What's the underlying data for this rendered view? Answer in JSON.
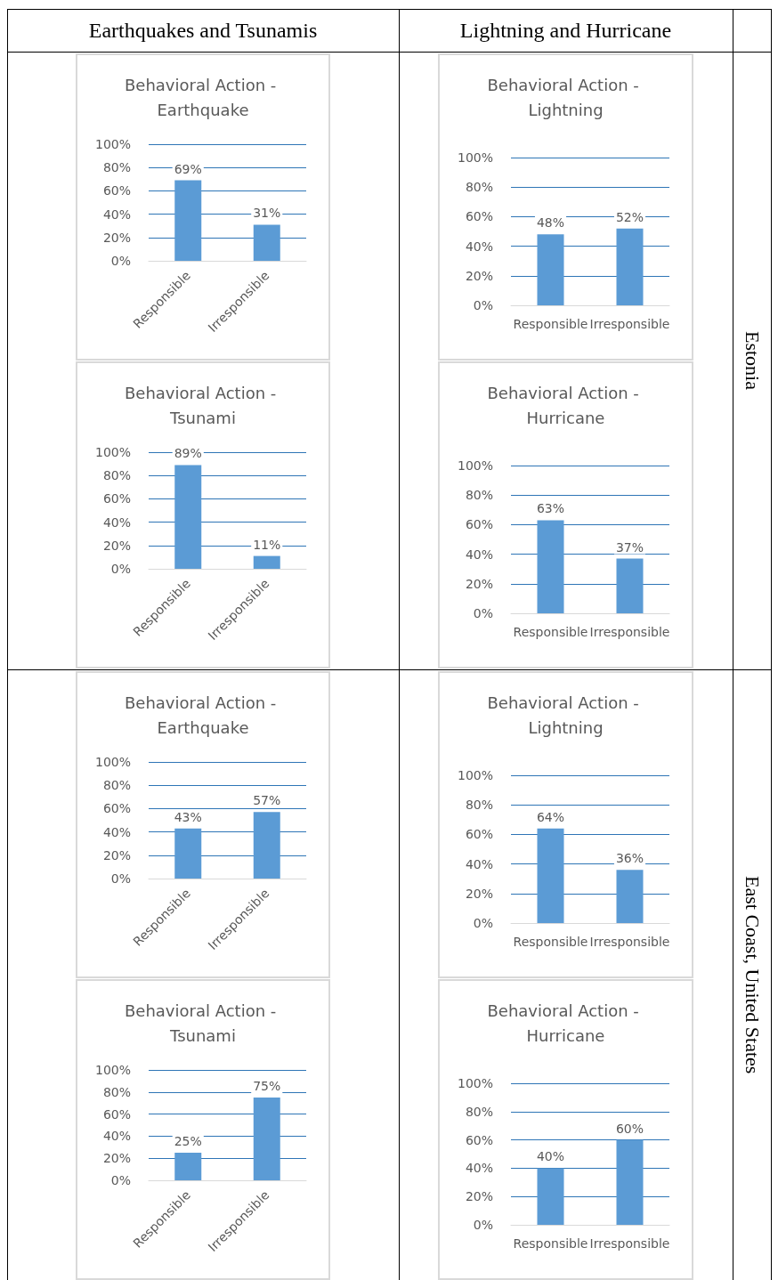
{
  "chart_data": [
    {
      "type": "other",
      "annotations": [
        "Earthquakes and Tsunamis",
        "Lightning and Hurricane",
        "Estonia",
        "East Coast, United States"
      ]
    },
    {
      "type": "bar",
      "title": "Behavioral Action - Earthquake",
      "categories": [
        "Responsible",
        "Irresponsible"
      ],
      "values": [
        69,
        31
      ],
      "value_labels": [
        "69%",
        "31%"
      ],
      "color": "#5b9bd5",
      "ylim": [
        0,
        100
      ],
      "yticks": [
        {
          "value": 0,
          "label": "0%"
        },
        {
          "value": 20,
          "label": "20%"
        },
        {
          "value": 40,
          "label": "40%"
        },
        {
          "value": 60,
          "label": "60%"
        },
        {
          "value": 80,
          "label": "80%"
        },
        {
          "value": 100,
          "label": "100%"
        }
      ],
      "grid": "y"
    },
    {
      "type": "bar",
      "title": "Behavioral Action - Lightning",
      "categories": [
        "Responsible",
        "Irresponsible"
      ],
      "values": [
        48,
        52
      ],
      "value_labels": [
        "48%",
        "52%"
      ],
      "color": "#5b9bd5",
      "ylim": [
        0,
        100
      ],
      "yticks": [
        {
          "value": 0,
          "label": "0%"
        },
        {
          "value": 20,
          "label": "20%"
        },
        {
          "value": 40,
          "label": "40%"
        },
        {
          "value": 60,
          "label": "60%"
        },
        {
          "value": 80,
          "label": "80%"
        },
        {
          "value": 100,
          "label": "100%"
        }
      ],
      "grid": "y"
    },
    {
      "type": "bar",
      "title": "Behavioral Action - Tsunami",
      "categories": [
        "Responsible",
        "Irresponsible"
      ],
      "values": [
        89,
        11
      ],
      "value_labels": [
        "89%",
        "11%"
      ],
      "color": "#5b9bd5",
      "ylim": [
        0,
        100
      ],
      "yticks": [
        {
          "value": 0,
          "label": "0%"
        },
        {
          "value": 20,
          "label": "20%"
        },
        {
          "value": 40,
          "label": "40%"
        },
        {
          "value": 60,
          "label": "60%"
        },
        {
          "value": 80,
          "label": "80%"
        },
        {
          "value": 100,
          "label": "100%"
        }
      ],
      "grid": "y"
    },
    {
      "type": "bar",
      "title": "Behavioral Action - Hurricane",
      "categories": [
        "Responsible",
        "Irresponsible"
      ],
      "values": [
        63,
        37
      ],
      "value_labels": [
        "63%",
        "37%"
      ],
      "color": "#5b9bd5",
      "ylim": [
        0,
        100
      ],
      "yticks": [
        {
          "value": 0,
          "label": "0%"
        },
        {
          "value": 20,
          "label": "20%"
        },
        {
          "value": 40,
          "label": "40%"
        },
        {
          "value": 60,
          "label": "60%"
        },
        {
          "value": 80,
          "label": "80%"
        },
        {
          "value": 100,
          "label": "100%"
        }
      ],
      "grid": "y"
    },
    {
      "type": "bar",
      "title": "Behavioral Action - Earthquake",
      "categories": [
        "Responsible",
        "Irresponsible"
      ],
      "values": [
        43,
        57
      ],
      "value_labels": [
        "43%",
        "57%"
      ],
      "color": "#5b9bd5",
      "ylim": [
        0,
        100
      ],
      "yticks": [
        {
          "value": 0,
          "label": "0%"
        },
        {
          "value": 20,
          "label": "20%"
        },
        {
          "value": 40,
          "label": "40%"
        },
        {
          "value": 60,
          "label": "60%"
        },
        {
          "value": 80,
          "label": "80%"
        },
        {
          "value": 100,
          "label": "100%"
        }
      ],
      "grid": "y"
    },
    {
      "type": "bar",
      "title": "Behavioral Action - Lightning",
      "categories": [
        "Responsible",
        "Irresponsible"
      ],
      "values": [
        64,
        36
      ],
      "value_labels": [
        "64%",
        "36%"
      ],
      "color": "#5b9bd5",
      "ylim": [
        0,
        100
      ],
      "yticks": [
        {
          "value": 0,
          "label": "0%"
        },
        {
          "value": 20,
          "label": "20%"
        },
        {
          "value": 40,
          "label": "40%"
        },
        {
          "value": 60,
          "label": "60%"
        },
        {
          "value": 80,
          "label": "80%"
        },
        {
          "value": 100,
          "label": "100%"
        }
      ],
      "grid": "y"
    },
    {
      "type": "bar",
      "title": "Behavioral Action - Tsunami",
      "categories": [
        "Responsible",
        "Irresponsible"
      ],
      "values": [
        25,
        75
      ],
      "value_labels": [
        "25%",
        "75%"
      ],
      "color": "#5b9bd5",
      "ylim": [
        0,
        100
      ],
      "yticks": [
        {
          "value": 0,
          "label": "0%"
        },
        {
          "value": 20,
          "label": "20%"
        },
        {
          "value": 40,
          "label": "40%"
        },
        {
          "value": 60,
          "label": "60%"
        },
        {
          "value": 80,
          "label": "80%"
        },
        {
          "value": 100,
          "label": "100%"
        }
      ],
      "grid": "y"
    },
    {
      "type": "bar",
      "title": "Behavioral Action - Hurricane",
      "categories": [
        "Responsible",
        "Irresponsible"
      ],
      "values": [
        40,
        60
      ],
      "value_labels": [
        "40%",
        "60%"
      ],
      "color": "#5b9bd5",
      "ylim": [
        0,
        100
      ],
      "yticks": [
        {
          "value": 0,
          "label": "0%"
        },
        {
          "value": 20,
          "label": "20%"
        },
        {
          "value": 40,
          "label": "40%"
        },
        {
          "value": 60,
          "label": "60%"
        },
        {
          "value": 80,
          "label": "80%"
        },
        {
          "value": 100,
          "label": "100%"
        }
      ],
      "grid": "y"
    }
  ]
}
